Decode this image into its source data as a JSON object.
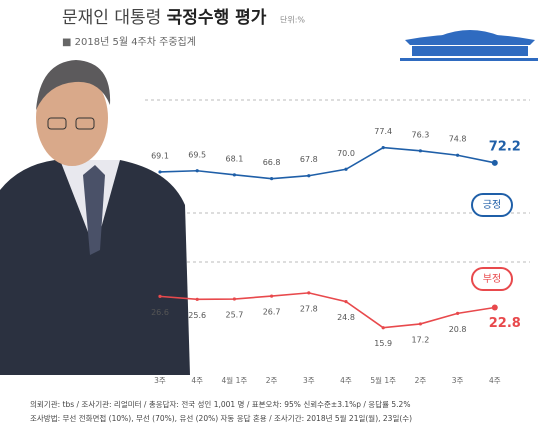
{
  "chart_data": {
    "type": "line",
    "title": "문재인 대통령",
    "title_bold": "국정수행 평가",
    "unit": "단위:%",
    "subtitle": "■ 2018년 5월 4주차 주중집계",
    "categories": [
      "3주",
      "4주",
      "4월 1주",
      "2주",
      "3주",
      "4주",
      "5월 1주",
      "2주",
      "3주",
      "4주"
    ],
    "series": [
      {
        "name": "긍정",
        "color": "#1f5fa8",
        "values": [
          69.1,
          69.5,
          68.1,
          66.8,
          67.8,
          70.0,
          77.4,
          76.3,
          74.8,
          72.2
        ],
        "value_labels": [
          "69.1",
          "69.5",
          "68.1",
          "66.8",
          "67.8",
          "70.0",
          "77.4",
          "76.3",
          "74.8",
          "72.2"
        ]
      },
      {
        "name": "부정",
        "color": "#e8494c",
        "values": [
          26.6,
          25.6,
          25.7,
          26.7,
          27.8,
          24.8,
          15.9,
          17.2,
          20.8,
          22.8
        ],
        "value_labels": [
          "26.6",
          "25.6",
          "25.7",
          "26.7",
          "27.8",
          "24.8",
          "15.9",
          "17.2",
          "20.8",
          "22.8"
        ]
      }
    ],
    "ylim": [
      10,
      80
    ],
    "footer": [
      "의뢰기관: tbs / 조사기관: 리얼미터 / 총응답자: 전국 성인 1,001 명 / 표본오차: 95% 신뢰수준±3.1%p / 응답률 5.2%",
      "조사방법: 무선 전화면접 (10%), 무선 (70%), 유선 (20%) 자동 응답 혼용 / 조사기간: 2018년 5월 21일(월), 23일(수)"
    ]
  }
}
